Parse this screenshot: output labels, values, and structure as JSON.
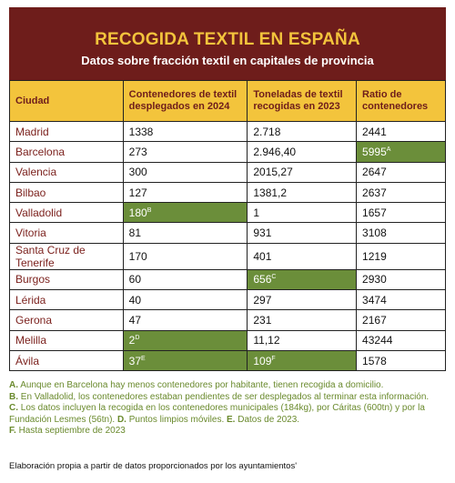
{
  "header": {
    "title": "RECOGIDA TEXTIL EN ESPAÑA",
    "subtitle": "Datos sobre fracción textil en capitales de provincia"
  },
  "table": {
    "columns": [
      "Ciudad",
      "Contenedores de textil desplegados en 2024",
      "Toneladas de textil recogidas en 2023",
      "Ratio de contenedores"
    ],
    "rows": [
      [
        "Madrid",
        "1338",
        "2.718",
        "2441"
      ],
      [
        "Barcelona",
        "273",
        "2.946,40",
        {
          "text": "5995",
          "sup": "A",
          "highlight": true
        }
      ],
      [
        "Valencia",
        "300",
        "2015,27",
        "2647"
      ],
      [
        "Bilbao",
        "127",
        "1381,2",
        "2637"
      ],
      [
        "Valladolid",
        {
          "text": "180",
          "sup": "B",
          "highlight": true
        },
        "1",
        "1657"
      ],
      [
        "Vitoria",
        "81",
        "931",
        "3108"
      ],
      [
        "Santa Cruz de Tenerife",
        "170",
        "401",
        "1219"
      ],
      [
        "Burgos",
        "60",
        {
          "text": "656",
          "sup": "C",
          "highlight": true
        },
        "2930"
      ],
      [
        "Lérida",
        "40",
        "297",
        "3474"
      ],
      [
        "Gerona",
        "47",
        "231",
        "2167"
      ],
      [
        "Melilla",
        {
          "text": "2",
          "sup": "D",
          "highlight": true
        },
        "11,12",
        "43244"
      ],
      [
        "Ávila",
        {
          "text": "37",
          "sup": "E",
          "highlight": true
        },
        {
          "text": "109",
          "sup": "F",
          "highlight": true
        },
        "1578"
      ]
    ]
  },
  "notes": [
    [
      {
        "letter": "A.",
        "text": "Aunque en Barcelona hay menos contenedores por habitante, tienen recogida a domicilio."
      }
    ],
    [
      {
        "letter": "B.",
        "text": "En Valladolid, los contenedores estaban pendientes de ser desplegados al terminar esta información."
      }
    ],
    [
      {
        "letter": "C.",
        "text": "Los datos incluyen la recogida en los contenedores municipales (184kg), por Cáritas (600tn) y por la Fundación Lesmes (56tn)."
      },
      {
        "letter": "D.",
        "text": "Puntos limpios móviles."
      },
      {
        "letter": "E.",
        "text": "Datos de 2023."
      }
    ],
    [
      {
        "letter": "F.",
        "text": "Hasta septiembre de 2023"
      }
    ]
  ],
  "source": "Elaboración propia a partir de datos proporcionados por los ayuntamientos'"
}
